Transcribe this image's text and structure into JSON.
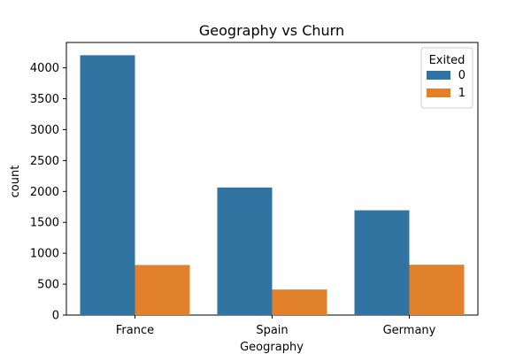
{
  "chart_data": {
    "type": "bar",
    "title": "Geography vs Churn",
    "xlabel": "Geography",
    "ylabel": "count",
    "categories": [
      "France",
      "Spain",
      "Germany"
    ],
    "ylim": [
      0,
      4410
    ],
    "yticks": [
      0,
      500,
      1000,
      1500,
      2000,
      2500,
      3000,
      3500,
      4000
    ],
    "grid": false,
    "legend": {
      "title": "Exited",
      "placement": "top-right"
    },
    "series": [
      {
        "name": "0",
        "color": "#3274a1",
        "values": [
          4204,
          2064,
          1695
        ]
      },
      {
        "name": "1",
        "color": "#e1812c",
        "values": [
          810,
          413,
          814
        ]
      }
    ]
  }
}
